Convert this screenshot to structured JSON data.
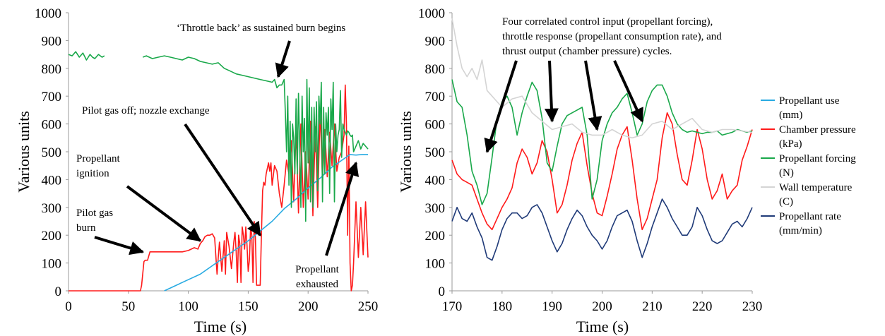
{
  "chart_data": [
    {
      "type": "line",
      "xlabel": "Time (s)",
      "ylabel": "Various units",
      "xlim": [
        0,
        250
      ],
      "ylim": [
        0,
        1000
      ],
      "xticks": [
        0,
        50,
        100,
        150,
        200,
        250
      ],
      "yticks": [
        0,
        100,
        200,
        300,
        400,
        500,
        600,
        700,
        800,
        900,
        1000
      ],
      "grid": false,
      "colors": {
        "blue": "#29abe2",
        "red": "#ff1a1a",
        "green": "#19a84a"
      },
      "series": [
        {
          "color": "#ff1a1a",
          "x": [
            0,
            20,
            40,
            60,
            61,
            63,
            64,
            66,
            68,
            70,
            75,
            80,
            85,
            90,
            95,
            100,
            105,
            108,
            110,
            112,
            114,
            116,
            118,
            120,
            122,
            124,
            125,
            126,
            128,
            130,
            131,
            132,
            134,
            136,
            138,
            139,
            140,
            141,
            142,
            143,
            144,
            145,
            146,
            147,
            148,
            149,
            150,
            151,
            152,
            153,
            154,
            155,
            156,
            157,
            158,
            159,
            160,
            161,
            162,
            163,
            164,
            165,
            166,
            167,
            168,
            169,
            170,
            172,
            174,
            176,
            178,
            180,
            182,
            184,
            186,
            188,
            190,
            192,
            194,
            196,
            198,
            200,
            202,
            204,
            206,
            208,
            210,
            212,
            214,
            216,
            218,
            220,
            222,
            224,
            226,
            228,
            230,
            231,
            232,
            233,
            234,
            235,
            236,
            237,
            238,
            240,
            242,
            244,
            246,
            248,
            250
          ],
          "y": [
            0,
            0,
            0,
            0,
            20,
            105,
            110,
            110,
            140,
            140,
            140,
            140,
            140,
            140,
            140,
            145,
            155,
            150,
            170,
            180,
            195,
            200,
            200,
            205,
            190,
            60,
            120,
            175,
            70,
            180,
            60,
            210,
            160,
            80,
            175,
            210,
            140,
            30,
            200,
            170,
            30,
            230,
            200,
            150,
            230,
            165,
            70,
            110,
            230,
            200,
            30,
            250,
            190,
            20,
            20,
            20,
            20,
            200,
            360,
            390,
            380,
            420,
            440,
            460,
            430,
            460,
            380,
            450,
            430,
            350,
            300,
            380,
            470,
            420,
            540,
            320,
            580,
            280,
            600,
            300,
            500,
            330,
            610,
            270,
            590,
            300,
            650,
            400,
            580,
            410,
            570,
            450,
            600,
            430,
            480,
            500,
            560,
            740,
            600,
            200,
            520,
            100,
            0,
            20,
            100,
            320,
            120,
            300,
            130,
            320,
            120
          ]
        },
        {
          "color": "#29abe2",
          "x": [
            80,
            90,
            100,
            110,
            120,
            130,
            140,
            150,
            160,
            170,
            180,
            190,
            200,
            210,
            220,
            230,
            235,
            240,
            245,
            250
          ],
          "y": [
            0,
            20,
            40,
            60,
            90,
            120,
            150,
            180,
            215,
            250,
            295,
            330,
            370,
            405,
            445,
            475,
            490,
            488,
            490,
            490
          ],
          "segments": [
            [
              80,
              240
            ],
            [
              240,
              250
            ]
          ]
        },
        {
          "color": "#19a84a",
          "x": [
            0,
            3,
            6,
            9,
            12,
            15,
            18,
            20,
            22,
            25,
            28,
            30,
            62,
            65,
            70,
            75,
            80,
            85,
            90,
            95,
            100,
            105,
            110,
            115,
            120,
            125,
            130,
            135,
            140,
            145,
            150,
            155,
            160,
            165,
            170,
            172,
            174,
            176,
            178,
            180,
            181,
            182,
            183,
            184,
            185,
            186,
            187,
            188,
            189,
            190,
            191,
            192,
            193,
            194,
            195,
            196,
            197,
            198,
            199,
            200,
            201,
            202,
            203,
            204,
            205,
            206,
            207,
            208,
            209,
            210,
            211,
            212,
            213,
            214,
            215,
            216,
            217,
            218,
            219,
            220,
            221,
            222,
            223,
            224,
            225,
            226,
            227,
            228,
            229,
            230,
            231,
            232,
            233,
            234,
            235,
            236,
            237,
            238,
            240,
            242,
            244,
            246,
            248,
            250
          ],
          "y": [
            850,
            845,
            860,
            840,
            855,
            830,
            850,
            840,
            835,
            850,
            840,
            845,
            840,
            845,
            835,
            840,
            845,
            840,
            835,
            830,
            840,
            835,
            825,
            820,
            815,
            820,
            800,
            790,
            780,
            775,
            770,
            765,
            760,
            755,
            750,
            760,
            730,
            740,
            740,
            760,
            640,
            500,
            700,
            380,
            610,
            300,
            600,
            550,
            420,
            690,
            420,
            710,
            520,
            300,
            700,
            500,
            620,
            250,
            760,
            460,
            730,
            320,
            660,
            300,
            660,
            500,
            680,
            360,
            700,
            600,
            750,
            320,
            660,
            420,
            640,
            560,
            660,
            350,
            690,
            580,
            750,
            320,
            600,
            500,
            560,
            580,
            720,
            480,
            600,
            580,
            570,
            560,
            575,
            570,
            560,
            555,
            560,
            500,
            520,
            540,
            510,
            530,
            520,
            510
          ],
          "segments": [
            [
              0,
              30
            ],
            [
              62,
              250
            ]
          ]
        }
      ],
      "annotations": [
        {
          "lines": [
            "‘Throttle back’ as sustained burn begins"
          ],
          "target": [
            175,
            770
          ]
        },
        {
          "lines": [
            "Pilot gas off; nozzle exchange"
          ],
          "target": [
            160,
            200
          ]
        },
        {
          "lines": [
            "Propellant",
            "ignition"
          ],
          "target": [
            110,
            180
          ]
        },
        {
          "lines": [
            "Pilot  gas",
            "burn"
          ],
          "target": [
            62,
            140
          ]
        },
        {
          "lines": [
            "Propellant",
            "exhausted"
          ],
          "target": [
            240,
            460
          ]
        }
      ]
    },
    {
      "type": "line",
      "xlabel": "Time (s)",
      "ylabel": "Various units",
      "xlim": [
        170,
        230
      ],
      "ylim": [
        0,
        1000
      ],
      "xticks": [
        170,
        180,
        190,
        200,
        210,
        220,
        230
      ],
      "yticks": [
        0,
        100,
        200,
        300,
        400,
        500,
        600,
        700,
        800,
        900,
        1000
      ],
      "grid": false,
      "annotation": {
        "lines": [
          "Four correlated control input (propellant forcing),",
          "throttle response (propellant consumption rate), and",
          "thrust output (chamber pressure) cycles."
        ],
        "targets": [
          [
            177,
            500
          ],
          [
            190,
            610
          ],
          [
            199,
            580
          ],
          [
            208,
            610
          ]
        ]
      },
      "series": [
        {
          "name": "Propellant use",
          "unit": "(mm)",
          "color": "#29abe2",
          "x": [],
          "y": []
        },
        {
          "name": "Chamber pressure",
          "unit": "(kPa)",
          "color": "#ff1a1a",
          "x": [
            170,
            171,
            172,
            173,
            174,
            175,
            176,
            177,
            178,
            179,
            180,
            181,
            182,
            183,
            184,
            185,
            186,
            187,
            188,
            189,
            190,
            191,
            192,
            193,
            194,
            195,
            196,
            197,
            198,
            199,
            200,
            201,
            202,
            203,
            204,
            205,
            206,
            207,
            208,
            209,
            210,
            211,
            212,
            213,
            214,
            215,
            216,
            217,
            218,
            219,
            220,
            221,
            222,
            223,
            224,
            225,
            226,
            227,
            228,
            229,
            230
          ],
          "y": [
            470,
            420,
            400,
            390,
            380,
            330,
            280,
            240,
            220,
            260,
            300,
            330,
            370,
            460,
            510,
            480,
            420,
            460,
            540,
            500,
            400,
            280,
            310,
            380,
            470,
            530,
            570,
            450,
            350,
            280,
            270,
            340,
            420,
            510,
            560,
            590,
            470,
            330,
            220,
            260,
            330,
            400,
            550,
            640,
            600,
            490,
            400,
            380,
            470,
            580,
            510,
            400,
            330,
            360,
            420,
            330,
            360,
            380,
            470,
            520,
            580
          ]
        },
        {
          "name": "Propellant forcing",
          "unit": "(N)",
          "color": "#19a84a",
          "x": [
            170,
            171,
            172,
            173,
            174,
            175,
            176,
            177,
            178,
            179,
            180,
            181,
            182,
            183,
            184,
            185,
            186,
            187,
            188,
            189,
            190,
            191,
            192,
            193,
            194,
            195,
            196,
            197,
            198,
            199,
            200,
            201,
            202,
            203,
            204,
            205,
            206,
            207,
            208,
            209,
            210,
            211,
            212,
            213,
            214,
            215,
            216,
            217,
            218,
            219,
            220,
            221,
            222,
            223,
            224,
            225,
            226,
            227,
            228,
            229,
            230
          ],
          "y": [
            760,
            680,
            660,
            560,
            430,
            380,
            310,
            350,
            480,
            620,
            680,
            700,
            660,
            560,
            640,
            700,
            750,
            720,
            620,
            460,
            430,
            520,
            600,
            630,
            640,
            650,
            660,
            560,
            330,
            400,
            540,
            600,
            640,
            660,
            690,
            710,
            640,
            560,
            600,
            680,
            720,
            740,
            740,
            700,
            640,
            600,
            580,
            570,
            575,
            570,
            565,
            570,
            570,
            575,
            560,
            565,
            570,
            580,
            575,
            570,
            575
          ]
        },
        {
          "name": "Wall temperature",
          "unit": "(C)",
          "color": "#d4d4d4",
          "x": [
            170,
            171,
            172,
            173,
            174,
            175,
            176,
            177,
            178,
            179,
            180,
            182,
            184,
            186,
            188,
            190,
            192,
            194,
            196,
            198,
            200,
            202,
            204,
            206,
            208,
            210,
            212,
            214,
            216,
            218,
            220,
            222,
            224,
            226,
            228,
            230
          ],
          "y": [
            980,
            880,
            800,
            770,
            800,
            760,
            830,
            720,
            700,
            680,
            660,
            690,
            700,
            640,
            610,
            580,
            590,
            600,
            570,
            560,
            560,
            580,
            560,
            550,
            560,
            600,
            610,
            580,
            600,
            620,
            580,
            570,
            580,
            580,
            575,
            570
          ]
        },
        {
          "name": "Propellant rate",
          "unit": "(mm/min)",
          "color": "#1f3a78",
          "x": [
            170,
            171,
            172,
            173,
            174,
            175,
            176,
            177,
            178,
            179,
            180,
            181,
            182,
            183,
            184,
            185,
            186,
            187,
            188,
            189,
            190,
            191,
            192,
            193,
            194,
            195,
            196,
            197,
            198,
            199,
            200,
            201,
            202,
            203,
            204,
            205,
            206,
            207,
            208,
            209,
            210,
            211,
            212,
            213,
            214,
            215,
            216,
            217,
            218,
            219,
            220,
            221,
            222,
            223,
            224,
            225,
            226,
            227,
            228,
            229,
            230
          ],
          "y": [
            250,
            300,
            260,
            250,
            280,
            230,
            190,
            120,
            110,
            160,
            220,
            260,
            280,
            280,
            260,
            270,
            300,
            310,
            280,
            230,
            180,
            140,
            170,
            220,
            260,
            290,
            270,
            230,
            200,
            180,
            150,
            180,
            230,
            270,
            280,
            290,
            250,
            180,
            120,
            170,
            230,
            280,
            330,
            300,
            260,
            230,
            200,
            200,
            230,
            300,
            270,
            220,
            180,
            170,
            180,
            210,
            240,
            250,
            230,
            260,
            300
          ]
        }
      ]
    }
  ]
}
